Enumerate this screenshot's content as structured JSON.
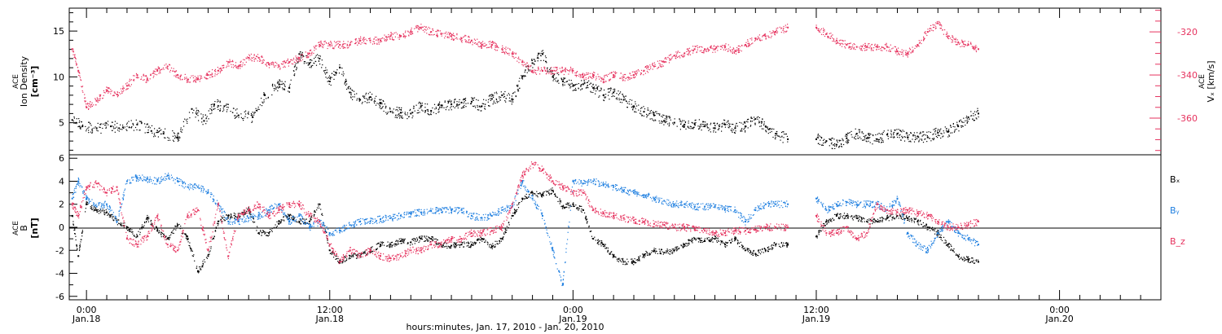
{
  "colors": {
    "density": "#000000",
    "vx": "#e6335f",
    "bx": "#000000",
    "by": "#1f7fe0",
    "bz": "#e6335f",
    "frame": "#000000"
  },
  "x_axis": {
    "title": "hours:minutes, Jan. 17, 2010 - Jan. 20, 2010",
    "ticks": [
      {
        "hour": 24,
        "time": "0:00",
        "date": "Jan.18"
      },
      {
        "hour": 36,
        "time": "12:00",
        "date": "Jan.18"
      },
      {
        "hour": 48,
        "time": "0:00",
        "date": "Jan.19"
      },
      {
        "hour": 60,
        "time": "12:00",
        "date": "Jan.19"
      },
      {
        "hour": 72,
        "time": "0:00",
        "date": "Jan.20"
      }
    ]
  },
  "chart_data": [
    {
      "type": "scatter",
      "panel": "top",
      "ylabel_left": [
        "ACE",
        "Ion Density",
        "[cm⁻³]"
      ],
      "ylabel_right": [
        "ACE",
        "Vₓ [km/s]"
      ],
      "xlim": [
        23.15,
        77.0
      ],
      "ylim_left": [
        1.5,
        17.5
      ],
      "ylim_right": [
        -377,
        -309
      ],
      "yticks_left": [
        5,
        10,
        15
      ],
      "yticks_right": [
        -360,
        -340,
        -320
      ],
      "series": [
        {
          "name": "Ion Density",
          "axis": "left",
          "x": [
            23.3,
            23.8,
            24.5,
            25.2,
            25.8,
            26.5,
            27.2,
            27.8,
            28.5,
            29.2,
            29.8,
            30.3,
            30.8,
            31.5,
            32.2,
            32.8,
            33.5,
            34.0,
            34.5,
            35.0,
            35.5,
            36.0,
            36.5,
            37.0,
            37.5,
            38.0,
            38.5,
            39.0,
            39.5,
            40.0,
            40.5,
            41.0,
            41.5,
            42.0,
            42.5,
            43.0,
            43.5,
            44.0,
            44.5,
            45.0,
            45.5,
            46.0,
            46.5,
            47.0,
            47.5,
            48.0,
            48.5,
            49.0,
            49.5,
            50.0,
            50.5,
            51.0,
            51.5,
            52.0,
            52.5,
            53.0,
            53.5,
            54.0,
            54.5,
            55.0,
            55.5,
            56.0,
            56.5,
            57.0,
            57.5,
            58.0,
            58.6,
            60.0,
            60.5,
            61.0,
            61.5,
            62.0,
            62.5,
            63.0,
            63.5,
            64.0,
            64.5,
            65.0,
            65.5,
            66.0,
            66.5,
            67.0,
            67.5,
            68.0
          ],
          "y": [
            5.3,
            4.6,
            4.4,
            4.6,
            4.5,
            4.8,
            4.1,
            3.8,
            3.4,
            6.5,
            5.2,
            7.0,
            6.8,
            5.8,
            5.6,
            8.0,
            9.2,
            8.8,
            12.5,
            11.5,
            12.0,
            9.5,
            11.0,
            8.3,
            7.5,
            7.8,
            7.1,
            6.2,
            6.1,
            6.0,
            6.8,
            6.3,
            6.9,
            7.0,
            7.2,
            7.3,
            6.8,
            7.6,
            8.0,
            7.5,
            10.0,
            11.5,
            12.5,
            10.0,
            9.5,
            9.0,
            9.2,
            8.8,
            8.0,
            8.3,
            7.5,
            6.8,
            6.2,
            5.8,
            5.2,
            5.0,
            4.8,
            4.9,
            4.6,
            4.4,
            4.8,
            4.4,
            4.6,
            5.4,
            4.6,
            3.8,
            3.2,
            3.2,
            3.0,
            2.6,
            3.3,
            3.8,
            3.3,
            3.2,
            3.7,
            3.8,
            3.4,
            3.5,
            3.4,
            3.9,
            4.0,
            4.6,
            5.6,
            6.0
          ]
        },
        {
          "name": "Vx",
          "axis": "right",
          "x": [
            23.3,
            23.6,
            24.0,
            24.5,
            25.0,
            25.5,
            26.0,
            26.5,
            27.0,
            27.5,
            28.0,
            28.5,
            29.0,
            29.5,
            30.0,
            30.5,
            31.0,
            31.5,
            32.0,
            32.5,
            33.0,
            33.5,
            34.0,
            34.5,
            35.0,
            35.5,
            36.0,
            36.5,
            37.0,
            37.5,
            38.0,
            38.5,
            39.0,
            39.5,
            40.0,
            40.5,
            41.0,
            41.5,
            42.0,
            42.5,
            43.0,
            43.5,
            44.0,
            44.5,
            45.0,
            45.5,
            46.0,
            46.5,
            47.0,
            47.5,
            48.0,
            48.5,
            49.0,
            49.5,
            50.0,
            50.5,
            51.0,
            51.5,
            52.0,
            52.5,
            53.0,
            53.5,
            54.0,
            54.5,
            55.0,
            55.5,
            56.0,
            56.5,
            57.0,
            57.5,
            58.0,
            58.6,
            60.0,
            60.5,
            61.0,
            61.5,
            62.0,
            62.5,
            63.0,
            63.5,
            64.0,
            64.5,
            65.0,
            65.5,
            66.0,
            66.5,
            67.0,
            67.5,
            68.0
          ],
          "y": [
            -328,
            -338,
            -355,
            -352,
            -347,
            -349,
            -345,
            -340,
            -342,
            -338,
            -336,
            -340,
            -342,
            -342,
            -340,
            -338,
            -334,
            -336,
            -332,
            -332,
            -335,
            -336,
            -334,
            -332,
            -330,
            -326,
            -326,
            -326,
            -326,
            -324,
            -324,
            -324,
            -322,
            -322,
            -320,
            -318,
            -320,
            -321,
            -322,
            -323,
            -324,
            -326,
            -326,
            -328,
            -330,
            -334,
            -338,
            -338,
            -338,
            -338,
            -338,
            -341,
            -340,
            -342,
            -340,
            -341,
            -340,
            -338,
            -336,
            -334,
            -331,
            -330,
            -328,
            -328,
            -328,
            -327,
            -329,
            -326,
            -323,
            -322,
            -320,
            -318,
            -318,
            -321,
            -324,
            -326,
            -327,
            -327,
            -327,
            -327,
            -329,
            -330,
            -326,
            -320,
            -316,
            -322,
            -325,
            -326,
            -328
          ]
        }
      ]
    },
    {
      "type": "scatter",
      "panel": "bottom",
      "ylabel_left": [
        "ACE",
        "B",
        "[nT]"
      ],
      "xlim": [
        23.15,
        77.0
      ],
      "ylim": [
        -6.3,
        6.3
      ],
      "yticks": [
        -6,
        -4,
        -2,
        0,
        2,
        4,
        6
      ],
      "legend_position": "right",
      "series": [
        {
          "name": "Bx",
          "x": [
            23.3,
            23.6,
            24.0,
            24.5,
            25.0,
            25.5,
            26.0,
            26.5,
            27.0,
            27.5,
            28.0,
            28.5,
            29.0,
            29.5,
            30.0,
            30.5,
            31.0,
            31.5,
            32.0,
            32.5,
            33.0,
            33.5,
            34.0,
            34.5,
            35.0,
            35.5,
            36.0,
            36.5,
            37.0,
            37.5,
            38.0,
            38.5,
            39.0,
            39.5,
            40.0,
            40.5,
            41.0,
            41.5,
            42.0,
            42.5,
            43.0,
            43.5,
            44.0,
            44.5,
            45.0,
            45.5,
            46.0,
            46.5,
            47.0,
            47.5,
            48.0,
            48.5,
            49.0,
            49.5,
            50.0,
            50.5,
            51.0,
            51.5,
            52.0,
            52.5,
            53.0,
            53.5,
            54.0,
            54.5,
            55.0,
            55.5,
            56.0,
            56.5,
            57.0,
            57.5,
            58.0,
            58.6,
            60.0,
            60.5,
            61.0,
            61.5,
            62.0,
            62.5,
            63.0,
            63.5,
            64.0,
            64.5,
            65.0,
            65.5,
            66.0,
            66.5,
            67.0,
            67.5,
            68.0
          ],
          "y": [
            1.0,
            -2.5,
            2.0,
            1.5,
            1.3,
            0.5,
            0.0,
            -0.8,
            0.8,
            -0.3,
            -1.0,
            0.2,
            -1.0,
            -3.8,
            -2.5,
            0.5,
            1.0,
            1.0,
            1.5,
            -0.5,
            -0.5,
            0.5,
            1.0,
            0.5,
            0.5,
            2.0,
            -2.0,
            -3.0,
            -2.5,
            -2.5,
            -2.0,
            -1.5,
            -1.5,
            -1.2,
            -1.3,
            -1.0,
            -1.0,
            -1.5,
            -1.6,
            -1.5,
            -1.5,
            -1.0,
            -1.7,
            -1.0,
            1.0,
            2.5,
            3.0,
            2.8,
            3.2,
            1.8,
            2.0,
            1.5,
            -1.0,
            -1.5,
            -2.5,
            -3.0,
            -3.0,
            -2.4,
            -2.0,
            -2.2,
            -2.0,
            -1.5,
            -1.0,
            -1.2,
            -1.0,
            -1.5,
            -1.0,
            -2.0,
            -2.3,
            -2.0,
            -1.5,
            -1.5,
            -0.8,
            0.5,
            1.0,
            1.0,
            0.8,
            0.5,
            0.5,
            0.8,
            1.0,
            0.8,
            0.5,
            0.0,
            -0.5,
            -1.5,
            -2.5,
            -2.8,
            -3.0
          ]
        },
        {
          "name": "By",
          "x": [
            23.3,
            23.6,
            24.0,
            24.5,
            25.0,
            25.5,
            26.0,
            26.5,
            27.0,
            27.5,
            28.0,
            28.5,
            29.0,
            29.5,
            30.0,
            30.5,
            31.0,
            31.5,
            32.0,
            32.5,
            33.0,
            33.5,
            34.0,
            34.5,
            35.0,
            35.5,
            36.0,
            36.5,
            37.0,
            37.5,
            38.0,
            38.5,
            39.0,
            39.5,
            40.0,
            40.5,
            41.0,
            41.5,
            42.0,
            42.5,
            43.0,
            43.5,
            44.0,
            44.5,
            45.0,
            45.5,
            46.0,
            46.5,
            47.0,
            47.5,
            48.0,
            48.5,
            49.0,
            49.5,
            50.0,
            50.5,
            51.0,
            51.5,
            52.0,
            52.5,
            53.0,
            53.5,
            54.0,
            54.5,
            55.0,
            55.5,
            56.0,
            56.5,
            57.0,
            57.5,
            58.0,
            58.6,
            60.0,
            60.5,
            61.0,
            61.5,
            62.0,
            62.5,
            63.0,
            63.5,
            64.0,
            64.5,
            65.0,
            65.5,
            66.0,
            66.5,
            67.0,
            67.5,
            68.0
          ],
          "y": [
            2.5,
            4.0,
            2.5,
            1.8,
            2.0,
            0.5,
            4.0,
            4.3,
            4.2,
            4.0,
            4.5,
            4.0,
            3.5,
            3.5,
            3.0,
            2.0,
            0.5,
            0.5,
            0.8,
            1.0,
            1.5,
            2.0,
            0.5,
            1.0,
            0.0,
            0.5,
            -0.5,
            -0.3,
            0.2,
            0.5,
            0.5,
            0.7,
            0.8,
            1.0,
            1.2,
            1.3,
            1.4,
            1.5,
            1.5,
            1.5,
            1.0,
            0.8,
            1.0,
            1.5,
            1.8,
            4.0,
            2.5,
            1.0,
            -2.0,
            -5.0,
            4.0,
            3.8,
            4.0,
            3.7,
            3.5,
            3.2,
            3.0,
            2.8,
            2.5,
            2.3,
            2.0,
            2.0,
            1.8,
            1.8,
            1.8,
            1.6,
            1.5,
            0.5,
            1.5,
            2.0,
            2.0,
            2.0,
            2.5,
            1.5,
            2.0,
            2.2,
            2.0,
            2.0,
            2.0,
            1.5,
            2.5,
            -0.5,
            -1.5,
            -2.0,
            -0.5,
            0.5,
            -0.5,
            -1.0,
            -1.5
          ]
        },
        {
          "name": "Bz",
          "x": [
            23.3,
            23.6,
            24.0,
            24.5,
            25.0,
            25.5,
            26.0,
            26.5,
            27.0,
            27.5,
            28.0,
            28.5,
            29.0,
            29.5,
            30.0,
            30.5,
            31.0,
            31.5,
            32.0,
            32.5,
            33.0,
            33.5,
            34.0,
            34.5,
            35.0,
            35.5,
            36.0,
            36.5,
            37.0,
            37.5,
            38.0,
            38.5,
            39.0,
            39.5,
            40.0,
            40.5,
            41.0,
            41.5,
            42.0,
            42.5,
            43.0,
            43.5,
            44.0,
            44.5,
            45.0,
            45.5,
            46.0,
            46.5,
            47.0,
            47.5,
            48.0,
            48.5,
            49.0,
            49.5,
            50.0,
            50.5,
            51.0,
            51.5,
            52.0,
            52.5,
            53.0,
            53.5,
            54.0,
            54.5,
            55.0,
            55.5,
            56.0,
            56.5,
            57.0,
            57.5,
            58.0,
            58.6,
            60.0,
            60.5,
            61.0,
            61.5,
            62.0,
            62.5,
            63.0,
            63.5,
            64.0,
            64.5,
            65.0,
            65.5,
            66.0,
            66.5,
            67.0,
            67.5,
            68.0
          ],
          "y": [
            2.0,
            1.0,
            3.5,
            3.8,
            3.0,
            3.5,
            -1.0,
            -1.5,
            -0.8,
            1.0,
            -1.5,
            -2.0,
            1.0,
            1.5,
            -2.0,
            2.0,
            -2.5,
            1.0,
            1.5,
            2.0,
            1.0,
            1.5,
            2.0,
            2.0,
            1.0,
            0.5,
            -1.5,
            -3.0,
            -2.0,
            -2.5,
            -2.0,
            -2.5,
            -2.7,
            -2.5,
            -2.0,
            -2.0,
            -1.5,
            -1.5,
            -1.0,
            -1.0,
            -0.5,
            -0.5,
            -0.3,
            0.0,
            2.0,
            4.5,
            5.5,
            5.0,
            4.0,
            3.5,
            3.0,
            3.0,
            1.5,
            1.2,
            1.0,
            0.8,
            0.6,
            0.5,
            0.3,
            0.2,
            0.0,
            0.0,
            -0.2,
            -0.3,
            -0.5,
            -0.5,
            -0.3,
            -0.3,
            -0.2,
            0.0,
            0.0,
            0.0,
            1.0,
            -0.5,
            -0.5,
            0.0,
            -1.0,
            -0.5,
            2.0,
            1.5,
            1.3,
            1.5,
            1.2,
            1.0,
            0.5,
            0.0,
            0.0,
            0.2,
            0.5
          ]
        }
      ],
      "legend": [
        {
          "label": "Bₓ",
          "color": "#000000"
        },
        {
          "label": "Bᵧ",
          "color": "#1f7fe0"
        },
        {
          "label": "B_z",
          "color": "#e6335f"
        }
      ]
    }
  ]
}
